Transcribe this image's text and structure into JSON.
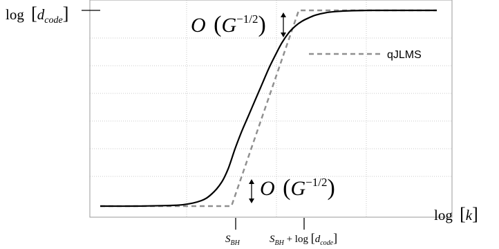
{
  "chart_data": {
    "type": "line",
    "ylabel_parts": {
      "pre": "log",
      "sym": "d",
      "sub": "code"
    },
    "xlabel_parts": {
      "pre": "log",
      "sym": "k"
    },
    "legend": {
      "entries": [
        "qJLMS"
      ],
      "placement": "top-right"
    },
    "grid": true,
    "xlim": [
      0,
      1
    ],
    "ylim": [
      0,
      1
    ],
    "ticks": [
      {
        "name": "S_BH",
        "x": 0.39,
        "parts": {
          "sym": "S",
          "sub": "BH",
          "tail": ""
        }
      },
      {
        "name": "S_BH + log[d_code]",
        "x": 0.59,
        "parts": {
          "sym": "S",
          "sub": "BH",
          "tail": " + log "
        }
      }
    ],
    "annotations": {
      "top": {
        "main": "O",
        "base": "G",
        "exp": "−1/2"
      },
      "bottom": {
        "main": "O",
        "base": "G",
        "exp": "−1/2"
      }
    },
    "series": [
      {
        "name": "qJLMS",
        "style": "dashed",
        "color": "#909090",
        "x": [
          0.0,
          0.39,
          0.59,
          1.0
        ],
        "y": [
          0.0,
          0.0,
          1.0,
          1.0
        ]
      },
      {
        "style": "solid",
        "color": "#000000",
        "x": [
          0.0,
          0.1,
          0.2,
          0.25,
          0.3,
          0.33,
          0.36,
          0.38,
          0.4,
          0.42,
          0.44,
          0.46,
          0.48,
          0.5,
          0.52,
          0.54,
          0.56,
          0.58,
          0.6,
          0.62,
          0.64,
          0.67,
          0.7,
          0.74,
          0.8,
          0.9,
          1.0
        ],
        "y": [
          0.0,
          0.0,
          0.003,
          0.008,
          0.028,
          0.06,
          0.12,
          0.19,
          0.29,
          0.38,
          0.46,
          0.54,
          0.62,
          0.7,
          0.77,
          0.835,
          0.885,
          0.92,
          0.945,
          0.962,
          0.976,
          0.988,
          0.994,
          0.998,
          1.0,
          1.0,
          1.0
        ]
      }
    ]
  }
}
